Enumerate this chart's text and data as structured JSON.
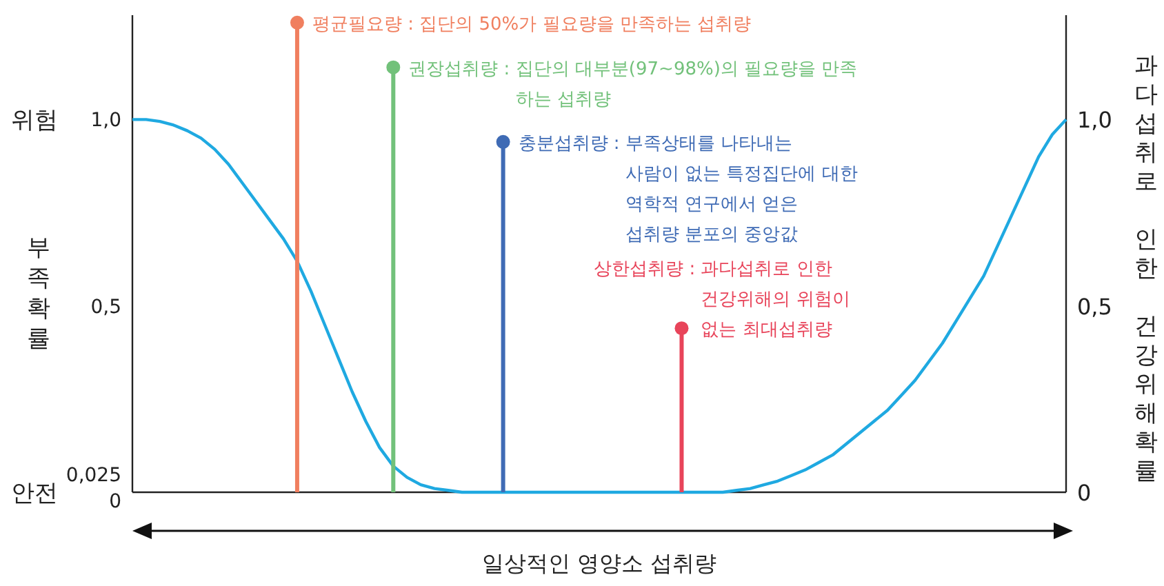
{
  "chart_data": {
    "type": "line",
    "xlabel": "일상적인 영양소 섭취량",
    "ylabel": "부족확률",
    "y2label": "과다섭취로 인한 건강위해확률",
    "categories": [
      null,
      null,
      null,
      null,
      null,
      null,
      null,
      null,
      null,
      null,
      null,
      null,
      null,
      null,
      null,
      null,
      null,
      null,
      null,
      null,
      null,
      null,
      null,
      null,
      null,
      null,
      null,
      null,
      null,
      null,
      null,
      null,
      null,
      null,
      null,
      null,
      null,
      null,
      null,
      null,
      null,
      null,
      null,
      null,
      null,
      null,
      null,
      null,
      null,
      null,
      null,
      null,
      null,
      null,
      null,
      null,
      null,
      null,
      null,
      null,
      null,
      null,
      null,
      null,
      null,
      null,
      null,
      null,
      null
    ],
    "ylim": [
      0,
      1.28
    ],
    "yticks": [
      {
        "value": 0,
        "label": "0"
      },
      {
        "value": 0.025,
        "label": "0,025"
      },
      {
        "value": 0.5,
        "label": "0,5"
      },
      {
        "value": 1,
        "label": "1,0"
      }
    ],
    "y2lim": [
      0,
      1.28
    ],
    "y2ticks": [
      {
        "value": 0,
        "label": "0"
      },
      {
        "value": 0.5,
        "label": "0,5"
      },
      {
        "value": 1,
        "label": "1,0"
      }
    ],
    "grid": false,
    "legend": false,
    "series": [
      {
        "color": "#1fa9e1",
        "values": [
          1,
          1,
          0.995,
          0.985,
          0.97,
          0.95,
          0.92,
          0.88,
          0.83,
          0.78,
          0.73,
          0.68,
          0.62,
          0.54,
          0.45,
          0.36,
          0.27,
          0.19,
          0.12,
          0.07,
          0.04,
          0.02,
          0.01,
          0.005,
          0,
          0,
          0,
          0,
          0,
          0,
          0,
          0,
          0,
          0,
          0,
          0,
          0,
          0,
          0,
          0,
          0,
          0,
          0,
          0,
          0.005,
          0.01,
          0.02,
          0.03,
          0.045,
          0.06,
          0.08,
          0.1,
          0.13,
          0.16,
          0.19,
          0.22,
          0.26,
          0.3,
          0.35,
          0.4,
          0.46,
          0.52,
          0.58,
          0.66,
          0.74,
          0.82,
          0.9,
          0.96,
          1
        ]
      },
      {
        "type": "lollipop",
        "marker": "circle",
        "name": "평균필요량 : 집단의 50%가 필요량을 만족하는 섭취량",
        "color": "#f07f5f",
        "values": [
          null,
          null,
          null,
          null,
          null,
          null,
          null,
          null,
          null,
          null,
          null,
          null,
          1.26,
          null,
          null,
          null,
          null,
          null,
          null,
          null,
          null,
          null,
          null,
          null,
          null,
          null,
          null,
          null,
          null,
          null,
          null,
          null,
          null,
          null,
          null,
          null,
          null,
          null,
          null,
          null,
          null,
          null,
          null,
          null,
          null,
          null,
          null,
          null,
          null,
          null,
          null,
          null,
          null,
          null,
          null,
          null,
          null,
          null,
          null,
          null,
          null,
          null,
          null,
          null,
          null,
          null,
          null,
          null,
          null
        ]
      },
      {
        "type": "lollipop",
        "marker": "circle",
        "name": "권장섭취량 : 집단의 대부분(97~98%)의 필요량을 만족\n하는 섭취량",
        "color": "#72c17a",
        "values": [
          null,
          null,
          null,
          null,
          null,
          null,
          null,
          null,
          null,
          null,
          null,
          null,
          null,
          null,
          null,
          null,
          null,
          null,
          null,
          1.14,
          null,
          null,
          null,
          null,
          null,
          null,
          null,
          null,
          null,
          null,
          null,
          null,
          null,
          null,
          null,
          null,
          null,
          null,
          null,
          null,
          null,
          null,
          null,
          null,
          null,
          null,
          null,
          null,
          null,
          null,
          null,
          null,
          null,
          null,
          null,
          null,
          null,
          null,
          null,
          null,
          null,
          null,
          null,
          null,
          null,
          null,
          null,
          null,
          null
        ]
      },
      {
        "type": "lollipop",
        "marker": "circle",
        "name": "충분섭취량 : 부족상태를 나타내는\n사람이 없는 특정집단에 대한\n역학적 연구에서 얻은\n섭취량 분포의 중앙값",
        "color": "#3f6bb5",
        "values": [
          null,
          null,
          null,
          null,
          null,
          null,
          null,
          null,
          null,
          null,
          null,
          null,
          null,
          null,
          null,
          null,
          null,
          null,
          null,
          null,
          null,
          null,
          null,
          null,
          null,
          null,
          null,
          0.94,
          null,
          null,
          null,
          null,
          null,
          null,
          null,
          null,
          null,
          null,
          null,
          null,
          null,
          null,
          null,
          null,
          null,
          null,
          null,
          null,
          null,
          null,
          null,
          null,
          null,
          null,
          null,
          null,
          null,
          null,
          null,
          null,
          null,
          null,
          null,
          null,
          null,
          null,
          null,
          null,
          null
        ]
      },
      {
        "type": "lollipop",
        "marker": "circle",
        "name": "상한섭취량 : 과다섭취로 인한\n건강위해의 위험이\n없는 최대섭취량",
        "color": "#e8445a",
        "values": [
          null,
          null,
          null,
          null,
          null,
          null,
          null,
          null,
          null,
          null,
          null,
          null,
          null,
          null,
          null,
          null,
          null,
          null,
          null,
          null,
          null,
          null,
          null,
          null,
          null,
          null,
          null,
          null,
          null,
          null,
          null,
          null,
          null,
          null,
          null,
          null,
          null,
          null,
          null,
          null,
          0.44,
          null,
          null,
          null,
          null,
          null,
          null,
          null,
          null,
          null,
          null,
          null,
          null,
          null,
          null,
          null,
          null,
          null,
          null,
          null,
          null,
          null,
          null,
          null,
          null,
          null,
          null,
          null,
          null
        ]
      }
    ],
    "annotations": [
      "위험",
      "안전"
    ]
  }
}
